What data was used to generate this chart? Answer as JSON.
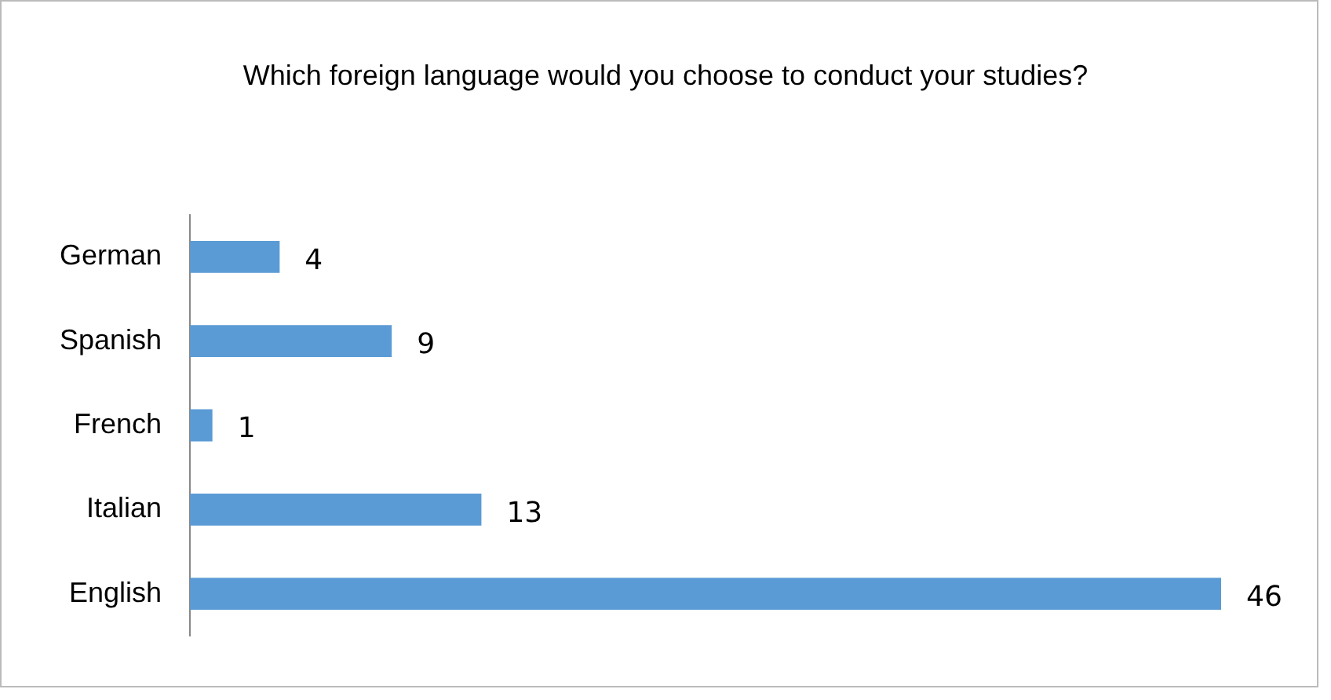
{
  "chart_data": {
    "type": "bar",
    "orientation": "horizontal",
    "title": "Which foreign language would you choose to conduct your studies?",
    "categories": [
      "German",
      "Spanish",
      "French",
      "Italian",
      "English"
    ],
    "values": [
      4,
      9,
      1,
      13,
      46
    ],
    "color": "#5b9bd5",
    "data_labels": true,
    "grid": false,
    "legend": false
  }
}
